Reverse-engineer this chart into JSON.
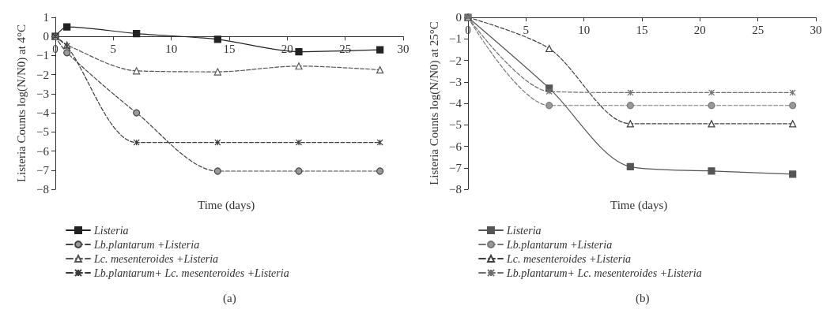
{
  "chart_data": [
    {
      "type": "line",
      "xlabel": "Time (days)",
      "ylabel": "Listeria Counts log(N/N0) at 4°C",
      "x": [
        0,
        1,
        7,
        14,
        21,
        28
      ],
      "xlim": [
        0,
        30
      ],
      "xticks": [
        0,
        5,
        10,
        15,
        20,
        25,
        30
      ],
      "ylim": [
        -8,
        1
      ],
      "yticks": [
        -8,
        -7,
        -6,
        -5,
        -4,
        -3,
        -2,
        -1,
        0,
        1
      ],
      "grid": false,
      "legend": "bottom",
      "annotations": [
        "(a)"
      ],
      "series": [
        {
          "name": "Listeria",
          "color": "#222222",
          "marker": "square",
          "line_style": "solid",
          "values": [
            0,
            0.5,
            0.15,
            -0.15,
            -0.8,
            -0.7
          ]
        },
        {
          "name": "Lb.plantarum +Listeria",
          "color": "#444444",
          "marker": "circle",
          "line_style": "dashed",
          "values": [
            0,
            -0.85,
            -4.0,
            -7.05,
            -7.05,
            -7.05
          ]
        },
        {
          "name": "Lc. mesenteroides +Listeria",
          "color": "#555555",
          "marker": "triangle",
          "line_style": "dashed",
          "values": [
            0,
            -0.45,
            -1.8,
            -1.85,
            -1.55,
            -1.75
          ]
        },
        {
          "name": "Lb.plantarum+ Lc. mesenteroides +Listeria",
          "color": "#3a3a3a",
          "marker": "cross",
          "line_style": "dashed",
          "values": [
            0,
            -0.5,
            -5.55,
            -5.55,
            -5.55,
            -5.55
          ]
        }
      ]
    },
    {
      "type": "line",
      "xlabel": "Time (days)",
      "ylabel": "Listeria Counts log(N/N0) at 25°C",
      "x": [
        0,
        7,
        14,
        21,
        28
      ],
      "xlim": [
        0,
        30
      ],
      "xticks": [
        0,
        5,
        10,
        15,
        20,
        25,
        30
      ],
      "ylim": [
        -8,
        0
      ],
      "yticks": [
        -8,
        -7,
        -6,
        -5,
        -4,
        -3,
        -2,
        -1,
        0
      ],
      "grid": false,
      "legend": "bottom",
      "annotations": [
        "(b)"
      ],
      "series": [
        {
          "name": "Listeria",
          "color": "#555555",
          "marker": "square",
          "line_style": "solid",
          "values": [
            0,
            -3.3,
            -6.95,
            -7.15,
            -7.3
          ]
        },
        {
          "name": "Lb.plantarum +Listeria",
          "color": "#777777",
          "marker": "circle",
          "line_style": "dashed",
          "values": [
            0,
            -4.1,
            -4.1,
            -4.1,
            -4.1
          ]
        },
        {
          "name": "Lc. mesenteroides +Listeria",
          "color": "#404040",
          "marker": "triangle",
          "line_style": "dashed",
          "values": [
            0,
            -1.45,
            -4.95,
            -4.95,
            -4.95
          ]
        },
        {
          "name": "Lb.plantarum+ Lc. mesenteroides +Listeria",
          "color": "#707070",
          "marker": "cross",
          "line_style": "dashed",
          "values": [
            0,
            -3.45,
            -3.5,
            -3.5,
            -3.5
          ]
        }
      ]
    }
  ]
}
